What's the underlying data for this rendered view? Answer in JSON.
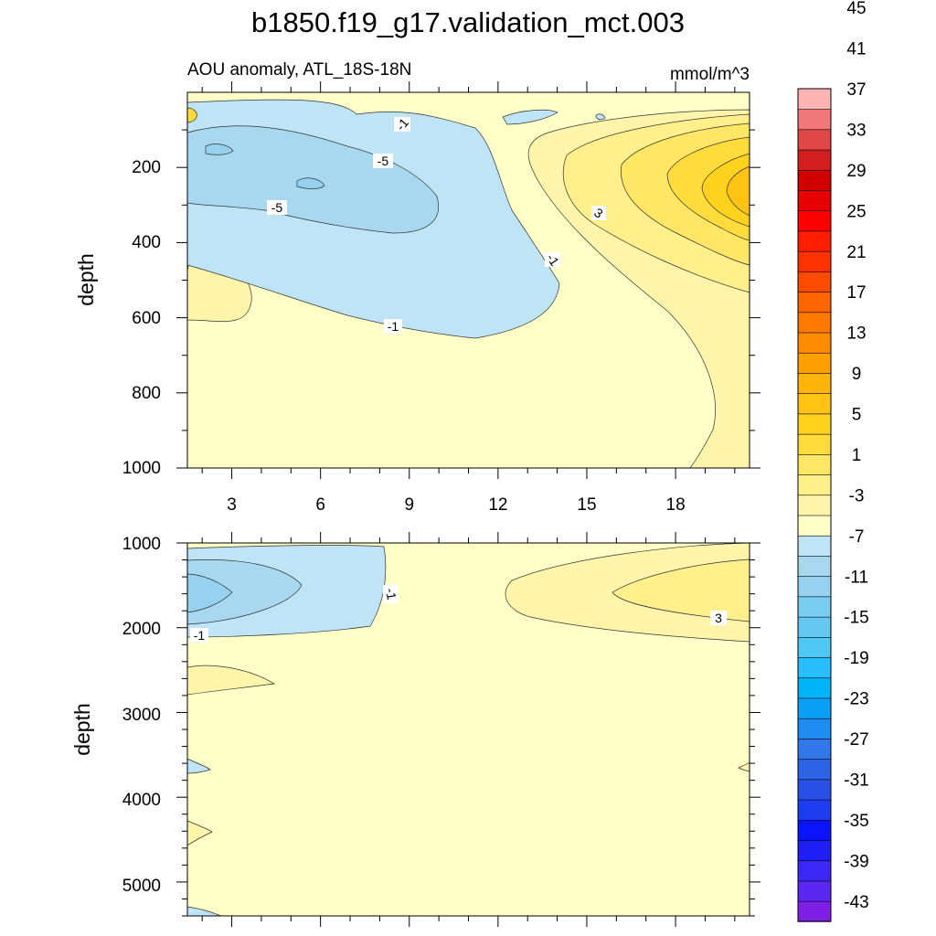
{
  "title": "b1850.f19_g17.validation_mct.003",
  "colorbar": {
    "colors": [
      "#7f1fe6",
      "#5a28f0",
      "#3c28f5",
      "#1e1ef5",
      "#0a14ff",
      "#1e3cf0",
      "#2850e6",
      "#2d64e6",
      "#3278eb",
      "#1e8cf0",
      "#0aa0f5",
      "#00b4fa",
      "#28beff",
      "#50c8f5",
      "#64c8f0",
      "#78cdf0",
      "#96d2f0",
      "#a8d8f0",
      "#bee4f5",
      "#ffffc8",
      "#fff5aa",
      "#fff08c",
      "#ffe664",
      "#ffdc3c",
      "#ffd21e",
      "#ffc314",
      "#ffb40a",
      "#ffa000",
      "#ff8c00",
      "#ff7800",
      "#ff6400",
      "#ff4b00",
      "#ff3200",
      "#ff1e00",
      "#ff0000",
      "#e60000",
      "#d20000",
      "#d21e1e",
      "#e14646",
      "#f07878",
      "#ffb4b4"
    ],
    "labels": [
      "-43",
      "-39",
      "-35",
      "-31",
      "-27",
      "-23",
      "-19",
      "-15",
      "-11",
      "-7",
      "-3",
      "1",
      "5",
      "9",
      "13",
      "17",
      "21",
      "25",
      "29",
      "33",
      "37",
      "41",
      "45"
    ]
  },
  "chart_data": [
    {
      "type": "contour",
      "title": "AOU anomaly, ATL_18S-18N",
      "units": "mmol/m^3",
      "ylabel": "depth",
      "xticks": [
        "3",
        "6",
        "9",
        "12",
        "15",
        "18"
      ],
      "yticks": [
        "200",
        "400",
        "600",
        "800",
        "1000"
      ],
      "xlim": [
        1.5,
        20.5
      ],
      "ylim": [
        1000,
        0
      ],
      "contour_labels": [
        "-1",
        "-5",
        "-5",
        "-1",
        "-1",
        "3"
      ]
    },
    {
      "type": "contour",
      "ylabel": "depth",
      "yticks": [
        "1000",
        "2000",
        "3000",
        "4000",
        "5000"
      ],
      "xlim": [
        1.5,
        20.5
      ],
      "ylim": [
        5400,
        1000
      ],
      "contour_labels": [
        "-1",
        "-1",
        "3"
      ]
    }
  ]
}
